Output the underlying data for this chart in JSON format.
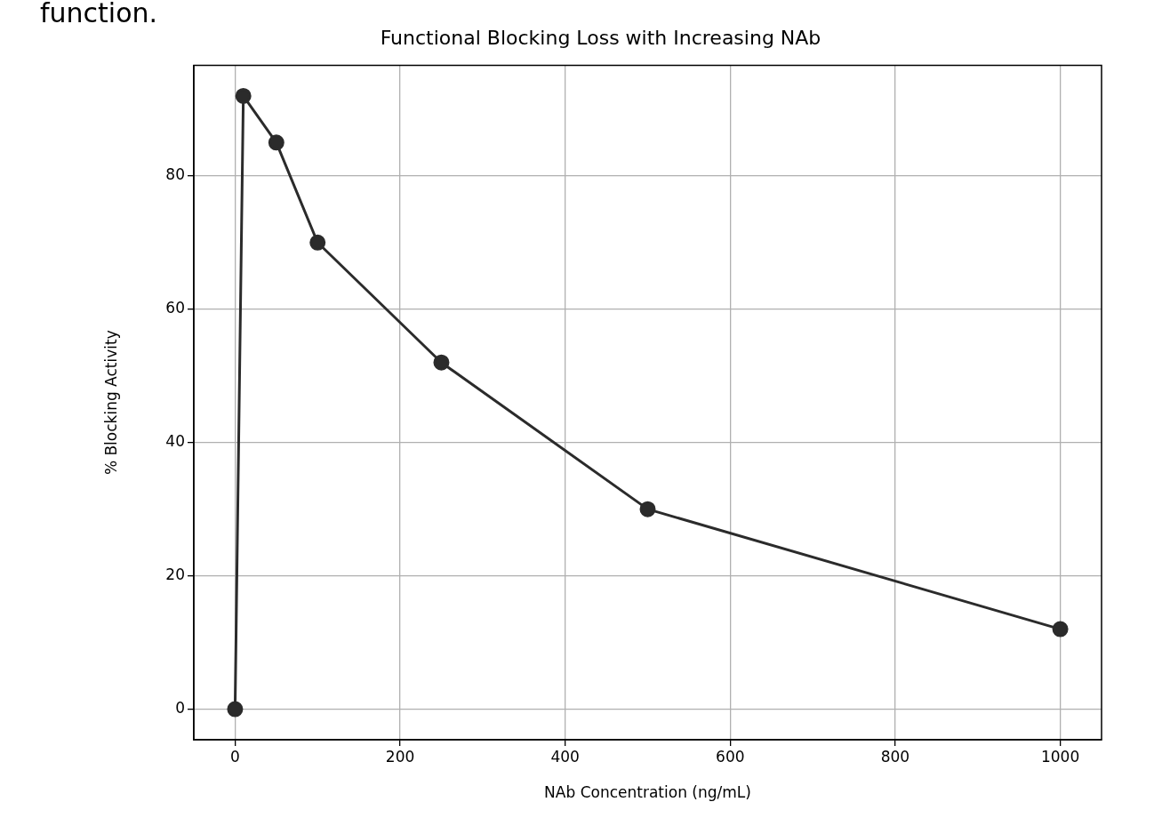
{
  "chart_data": {
    "type": "line",
    "title": "Functional Blocking Loss with Increasing NAb",
    "xlabel": "NAb Concentration (ng/mL)",
    "ylabel": "% Blocking Activity",
    "annotations": [
      "function."
    ],
    "x": [
      0,
      10,
      50,
      100,
      250,
      500,
      1000
    ],
    "series": [
      {
        "color": "#2b2b2b",
        "values": [
          0,
          92,
          85,
          70,
          52,
          30,
          12
        ]
      }
    ],
    "xlim": [
      -50,
      1050
    ],
    "xticks": [
      0,
      200,
      400,
      600,
      800,
      1000
    ],
    "ylim": [
      -4.6,
      96.6
    ],
    "yticks": [
      0,
      20,
      40,
      60,
      80
    ],
    "grid": true,
    "legend": false,
    "marker": "circle",
    "line_style": "solid"
  }
}
